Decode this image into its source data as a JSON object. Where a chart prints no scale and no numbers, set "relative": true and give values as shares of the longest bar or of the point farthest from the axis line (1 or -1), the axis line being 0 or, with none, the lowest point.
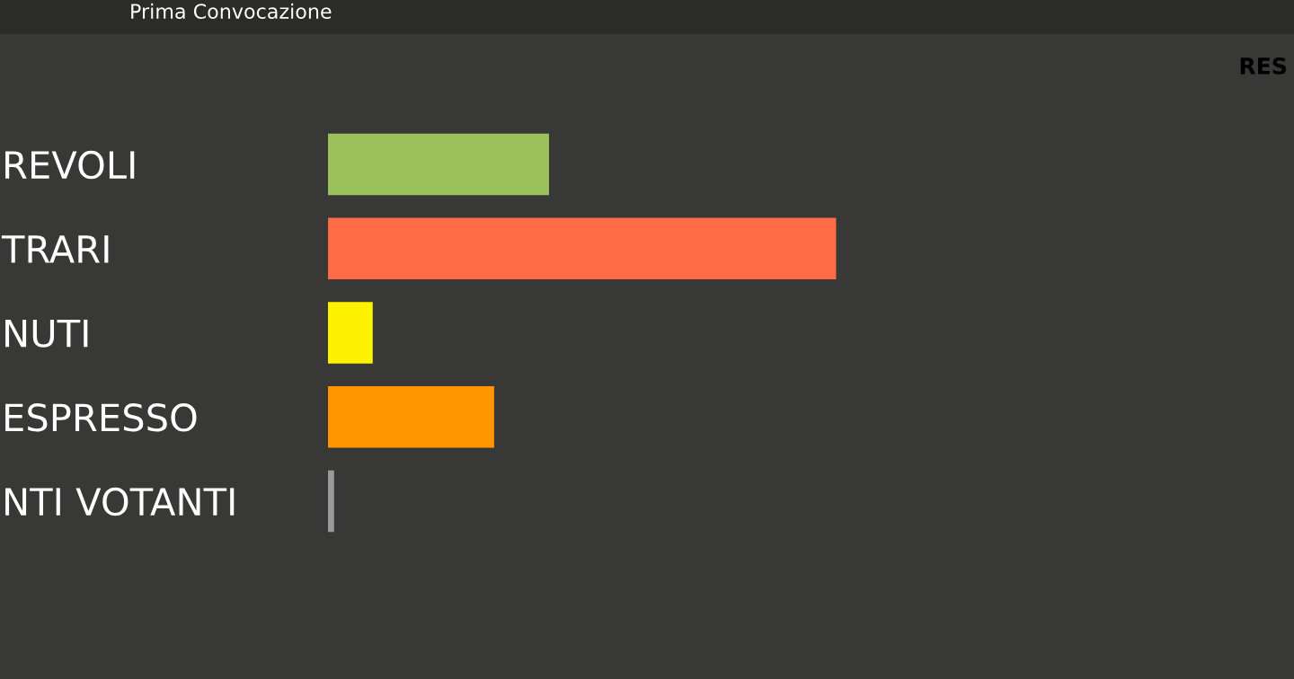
{
  "chart_data": {
    "type": "bar",
    "orientation": "horizontal",
    "relative": true,
    "title": "Prima Convocazione",
    "annotations": [
      "RES"
    ],
    "categories": [
      "REVOLI",
      "TRARI",
      "NUTI",
      "ESPRESSO",
      "NTI VOTANTI"
    ],
    "values": [
      0.435,
      1,
      0.088,
      0.327,
      0.012
    ],
    "colors": [
      "#9bc15b",
      "#ff6b45",
      "#fff200",
      "#ff9600",
      "#9a9a9a"
    ]
  }
}
